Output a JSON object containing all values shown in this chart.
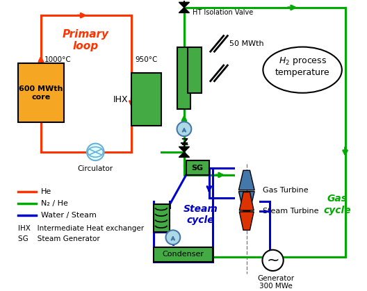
{
  "bg_color": "#ffffff",
  "he_color": "#ff3300",
  "n2he_color": "#00aa00",
  "water_color": "#0000cc",
  "core_color": "#f5a623",
  "ihx_color": "#44aa44",
  "circ_color": "#6ab0d4",
  "turbine_blue": "#4477aa",
  "turbine_red": "#dd3300",
  "lw": 2.2,
  "texts": {
    "primary_loop": "Primary\nloop",
    "gas_cycle": "Gas\ncycle",
    "steam_cycle": "Steam\ncycle",
    "core": "600 MWth\ncore",
    "ihx_label": "IHX",
    "sg_label": "SG",
    "circulator": "Circulator",
    "ht_valve": "HT Isolation Valve",
    "h2_process": "H₂ process\ntemperature",
    "temp_1000": "1000°C",
    "temp_950": "950°C",
    "temp_50": "50 MWth",
    "gas_turbine": "Gas Turbine",
    "steam_turbine": "Steam Turbine",
    "generator": "Generator\n300 MWe",
    "condenser": "Condenser",
    "legend_he": "He",
    "legend_n2he": "N₂ / He",
    "legend_water": "Water / Steam",
    "legend_ihx": "IHX   Intermediate Heat exchanger",
    "legend_sg": "SG    Steam Generator"
  }
}
